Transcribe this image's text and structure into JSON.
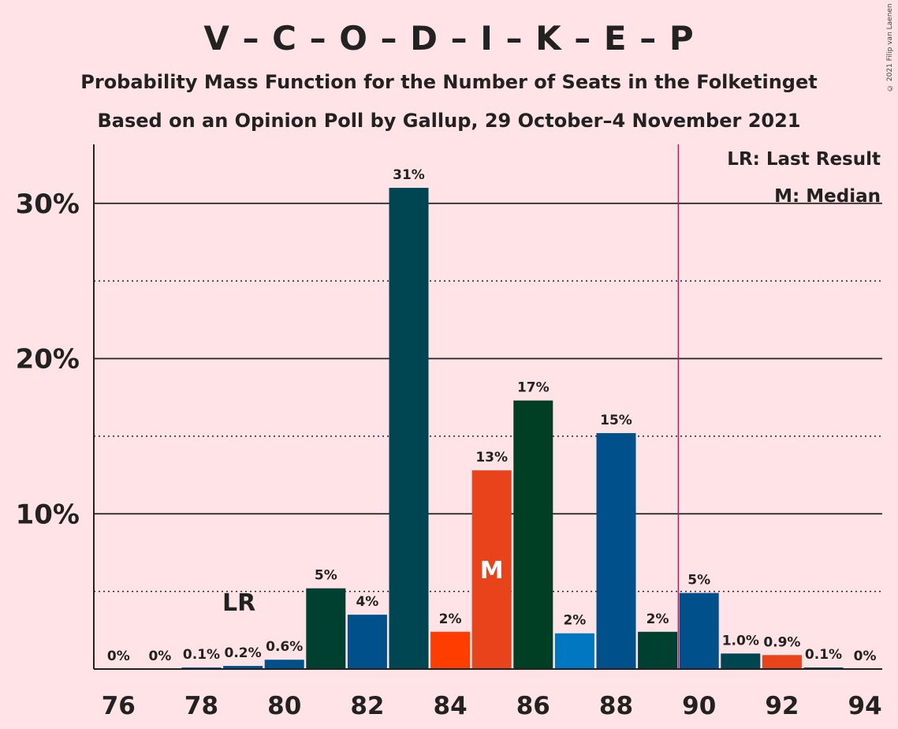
{
  "chart_data": {
    "type": "bar",
    "title": "V – C – O – D – I – K – E – P",
    "subtitle": "Probability Mass Function for the Number of Seats in the Folketinget",
    "subtitle2": "Based on an Opinion Poll by Gallup, 29 October–4 November 2021",
    "copyright": "© 2021 Filip van Laenen",
    "categories": [
      76,
      77,
      78,
      79,
      80,
      81,
      82,
      83,
      84,
      85,
      86,
      87,
      88,
      89,
      90,
      91,
      92,
      93,
      94
    ],
    "values": [
      0,
      0,
      0.1,
      0.2,
      0.6,
      5.2,
      3.5,
      31.0,
      2.4,
      12.8,
      17.3,
      2.3,
      15.2,
      2.4,
      4.9,
      1.0,
      0.9,
      0.1,
      0
    ],
    "value_labels": [
      "0%",
      "0%",
      "0.1%",
      "0.2%",
      "0.6%",
      "5%",
      "4%",
      "31%",
      "2%",
      "13%",
      "17%",
      "2%",
      "15%",
      "2%",
      "5%",
      "1.0%",
      "0.9%",
      "0.1%",
      "0%"
    ],
    "bar_colors": [
      "#004552",
      "#004552",
      "#00508C",
      "#00508C",
      "#00508C",
      "#004030",
      "#00508C",
      "#004552",
      "#FF3D00",
      "#E8431A",
      "#003F23",
      "#0077C0",
      "#00508C",
      "#004030",
      "#00508C",
      "#004552",
      "#E8431A",
      "#004552",
      "#004552"
    ],
    "x_tick_labels": [
      "76",
      "78",
      "80",
      "82",
      "84",
      "86",
      "88",
      "90",
      "92",
      "94"
    ],
    "y_ticks": [
      {
        "value": 10,
        "label": "10%"
      },
      {
        "value": 20,
        "label": "20%"
      },
      {
        "value": 30,
        "label": "30%"
      }
    ],
    "y_minor_gridlines": [
      5,
      15,
      25
    ],
    "ylim": [
      0,
      33.8
    ],
    "last_result": {
      "seats": 79,
      "label": "LR"
    },
    "median": {
      "seats": 85,
      "label": "M"
    },
    "majority_line": {
      "seats": 89.5,
      "color": "#C2185B"
    },
    "legend": [
      "LR: Last Result",
      "M: Median"
    ],
    "grid": true
  }
}
